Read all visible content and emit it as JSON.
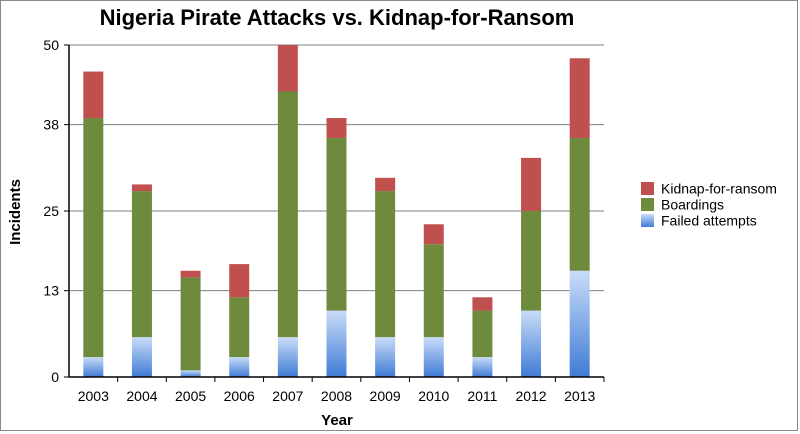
{
  "chart_data": {
    "type": "bar",
    "stacked": true,
    "title": "Nigeria Pirate Attacks vs. Kidnap-for-Ransom",
    "xlabel": "Year",
    "ylabel": "Incidents",
    "ylim": [
      0,
      50
    ],
    "yticks": [
      "0",
      "13",
      "25",
      "38",
      "50"
    ],
    "grid": true,
    "legend_position": "right",
    "categories": [
      "2003",
      "2004",
      "2005",
      "2006",
      "2007",
      "2008",
      "2009",
      "2010",
      "2011",
      "2012",
      "2013"
    ],
    "series": [
      {
        "name": "Failed attempts",
        "color": "#5b8fe0",
        "values": [
          3,
          6,
          1,
          3,
          6,
          10,
          6,
          6,
          3,
          10,
          16
        ]
      },
      {
        "name": "Boardings",
        "color": "#6e8b3d",
        "values": [
          36,
          22,
          14,
          9,
          37,
          26,
          22,
          14,
          7,
          15,
          20
        ]
      },
      {
        "name": "Kidnap-for-ransom",
        "color": "#c0504d",
        "values": [
          7,
          1,
          1,
          5,
          7,
          3,
          2,
          3,
          2,
          8,
          12
        ]
      }
    ],
    "legend_order": [
      "Kidnap-for-ransom",
      "Boardings",
      "Failed attempts"
    ]
  }
}
